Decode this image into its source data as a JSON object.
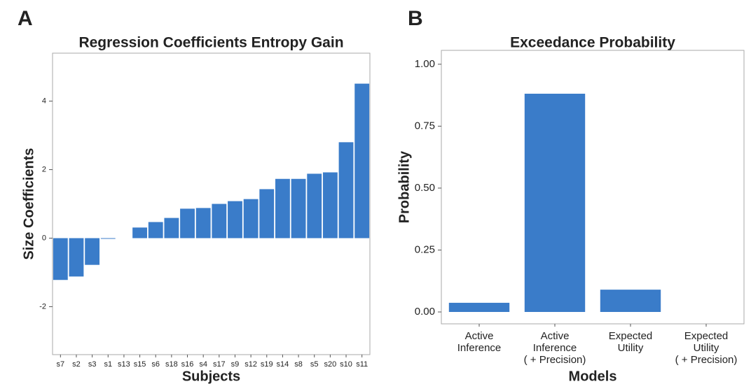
{
  "chart_data": [
    {
      "type": "bar",
      "panel": "A",
      "title": "Regression Coefficients Entropy Gain",
      "x_label": "Subjects",
      "y_label": "Size Coefficients",
      "categories": [
        "s7",
        "s2",
        "s3",
        "s1",
        "s13",
        "s15",
        "s6",
        "s18",
        "s16",
        "s4",
        "s17",
        "s9",
        "s12",
        "s19",
        "s14",
        "s8",
        "s5",
        "s20",
        "s10",
        "s11"
      ],
      "values": [
        -1.22,
        -1.12,
        -0.78,
        -0.02,
        0,
        0.31,
        0.47,
        0.59,
        0.86,
        0.88,
        1.0,
        1.08,
        1.14,
        1.43,
        1.73,
        1.73,
        1.88,
        1.92,
        2.8,
        4.51
      ],
      "color": "#3a7cc9",
      "ylim": [
        -3.4,
        5.4
      ],
      "yticks": [
        -2,
        0,
        2,
        4
      ],
      "grid": false
    },
    {
      "type": "bar",
      "panel": "B",
      "title": "Exceedance Probability",
      "x_label": "Models",
      "y_label": "Probability",
      "categories": [
        [
          "Active",
          "Inference"
        ],
        [
          "Active",
          "Inference",
          "( + Precision)"
        ],
        [
          "Expected",
          "Utility"
        ],
        [
          "Expected",
          "Utility",
          "( + Precision)"
        ]
      ],
      "values": [
        0.037,
        0.881,
        0.09,
        0
      ],
      "color": "#3a7cc9",
      "ylim": [
        -0.048,
        1.056
      ],
      "yticks": [
        {
          "value": 0,
          "label": "0.00"
        },
        {
          "value": 0.25,
          "label": "0.25"
        },
        {
          "value": 0.5,
          "label": "0.50"
        },
        {
          "value": 0.75,
          "label": "0.75"
        },
        {
          "value": 1,
          "label": "1.00"
        }
      ],
      "grid": false
    }
  ]
}
